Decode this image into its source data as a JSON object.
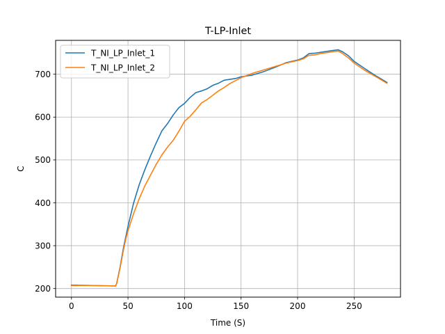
{
  "chart_data": {
    "type": "line",
    "title": "T-LP-Inlet",
    "xlabel": "Time (S)",
    "ylabel": "C",
    "xlim": [
      -14,
      291
    ],
    "ylim": [
      180,
      779
    ],
    "xticks": [
      0,
      50,
      100,
      150,
      200,
      250
    ],
    "yticks": [
      200,
      300,
      400,
      500,
      600,
      700
    ],
    "grid": true,
    "legend_position": "upper-left",
    "series": [
      {
        "name": "T_NI_LP_Inlet_1",
        "color": "#1f77b4",
        "x": [
          0,
          20,
          39,
          40,
          43,
          46,
          48,
          50,
          55,
          60,
          65,
          70,
          75,
          80,
          85,
          90,
          95,
          100,
          105,
          110,
          115,
          120,
          125,
          130,
          135,
          140,
          145,
          150,
          155,
          160,
          170,
          180,
          190,
          200,
          205,
          210,
          215,
          220,
          230,
          236,
          240,
          245,
          250,
          260,
          270,
          279
        ],
        "y": [
          208,
          207,
          206,
          212,
          250,
          295,
          320,
          345,
          400,
          443,
          478,
          510,
          540,
          568,
          585,
          605,
          622,
          632,
          646,
          657,
          661,
          666,
          674,
          679,
          686,
          688,
          690,
          694,
          696,
          698,
          706,
          716,
          727,
          733,
          738,
          748,
          749,
          751,
          755,
          757,
          752,
          743,
          730,
          712,
          695,
          681
        ]
      },
      {
        "name": "T_NI_LP_Inlet_2",
        "color": "#ff7f0e",
        "x": [
          0,
          20,
          39,
          40,
          43,
          46,
          48,
          50,
          55,
          60,
          65,
          70,
          75,
          80,
          85,
          90,
          95,
          100,
          105,
          110,
          115,
          120,
          125,
          130,
          135,
          140,
          145,
          150,
          155,
          160,
          170,
          180,
          190,
          200,
          205,
          210,
          215,
          220,
          230,
          236,
          240,
          245,
          250,
          260,
          270,
          279
        ],
        "y": [
          207,
          207,
          206,
          212,
          248,
          290,
          315,
          335,
          375,
          410,
          440,
          465,
          490,
          512,
          530,
          546,
          567,
          590,
          602,
          617,
          633,
          641,
          651,
          661,
          669,
          678,
          685,
          692,
          697,
          702,
          710,
          718,
          726,
          732,
          736,
          744,
          745,
          748,
          752,
          754,
          748,
          738,
          726,
          708,
          693,
          679
        ]
      }
    ]
  }
}
